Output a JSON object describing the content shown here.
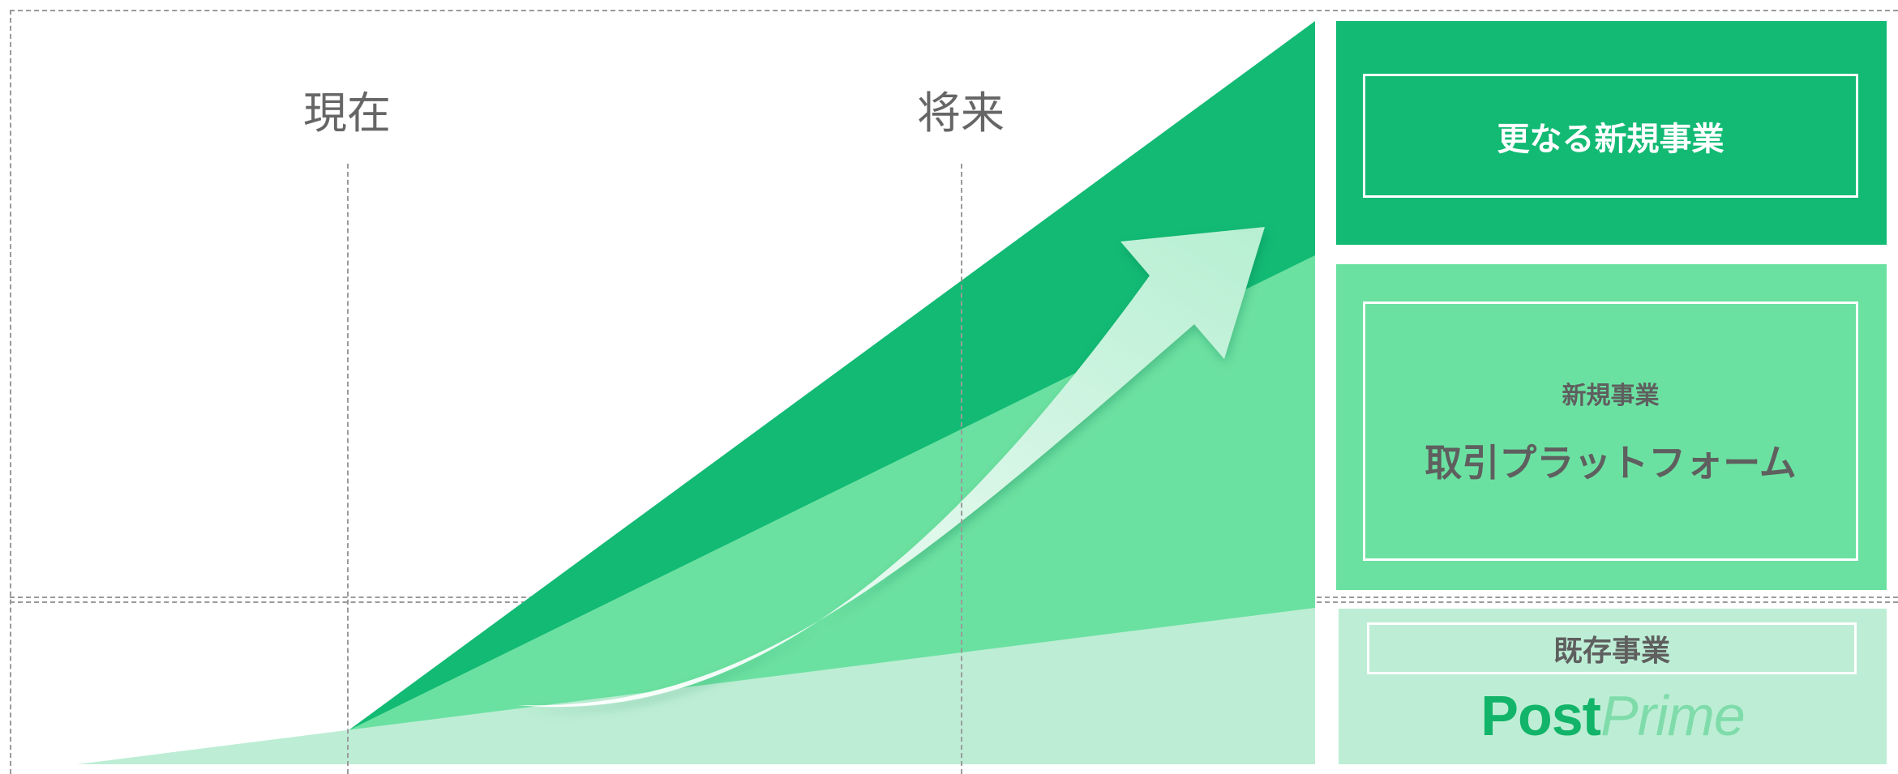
{
  "timeline": {
    "now_label": "現在",
    "future_label": "将来"
  },
  "segments": {
    "top": {
      "title": "更なる新規事業"
    },
    "middle": {
      "subtitle": "新規事業",
      "title": "取引プラットフォーム"
    },
    "bottom": {
      "title": "既存事業",
      "logo_bold": "Post",
      "logo_light": "Prime"
    }
  },
  "colors": {
    "dark_green": "#12ba74",
    "mid_green": "#6be1a1",
    "light_green": "#bdeed5",
    "arrow_start": "#ffffff",
    "arrow_end": "#b7efd2",
    "logo_bold": "#12b469",
    "logo_light": "#7fdcaa",
    "dashed_line": "#9a9a9a",
    "label_gray": "#666666"
  },
  "icons": [
    "growth-arrow-icon"
  ]
}
